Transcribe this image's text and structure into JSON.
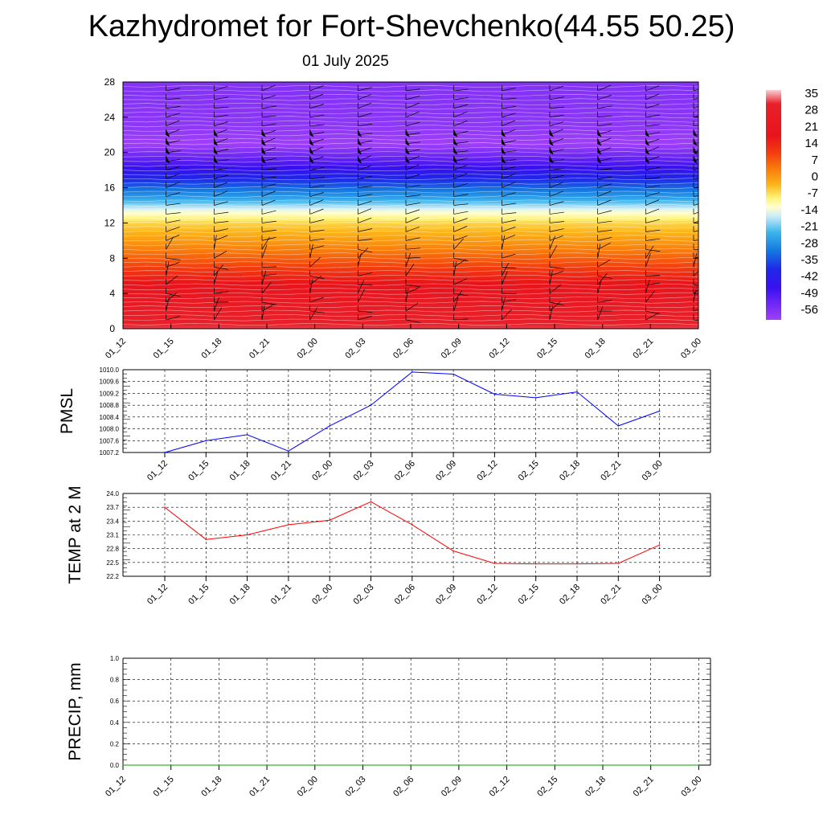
{
  "title": "Kazhydromet for Fort-Shevchenko(44.55 50.25)",
  "subtitle": "01 July 2025",
  "colors": {
    "pmsl_line": "#0000ff",
    "temp_line": "#ff0000",
    "precip_line": "#00a000",
    "grid": "#000000"
  },
  "chart_data": [
    {
      "type": "heatmap",
      "name": "temperature-wind-section",
      "x": [
        "01_12",
        "01_15",
        "01_18",
        "01_21",
        "02_00",
        "02_03",
        "02_06",
        "02_09",
        "02_12",
        "02_15",
        "02_18",
        "02_21",
        "03_00"
      ],
      "y_ticks": [
        0,
        4,
        8,
        12,
        16,
        20,
        24,
        28
      ],
      "ylim": [
        0,
        28
      ],
      "colorbar": {
        "labels": [
          "35",
          "28",
          "21",
          "14",
          "7",
          "0",
          "-7",
          "-14",
          "-21",
          "-28",
          "-35",
          "-42",
          "-49",
          "-56"
        ],
        "range": [
          -60,
          38
        ]
      },
      "profile": [
        {
          "level": 0,
          "value": 34
        },
        {
          "level": 2,
          "value": 30
        },
        {
          "level": 4,
          "value": 24
        },
        {
          "level": 6,
          "value": 17
        },
        {
          "level": 8,
          "value": 10
        },
        {
          "level": 10,
          "value": 3
        },
        {
          "level": 12,
          "value": -3
        },
        {
          "level": 13.5,
          "value": -12
        },
        {
          "level": 15,
          "value": -25
        },
        {
          "level": 17,
          "value": -38
        },
        {
          "level": 19,
          "value": -50
        },
        {
          "level": 21,
          "value": -60
        },
        {
          "level": 22.5,
          "value": -58
        },
        {
          "level": 24,
          "value": -57
        },
        {
          "level": 28,
          "value": -56
        }
      ]
    },
    {
      "type": "line",
      "name": "pmsl",
      "ylabel": "PMSL",
      "x": [
        "01_12",
        "01_15",
        "01_18",
        "01_21",
        "02_00",
        "02_03",
        "02_06",
        "02_09",
        "02_12",
        "02_15",
        "02_18",
        "02_21",
        "03_00"
      ],
      "values": [
        1007.2,
        1007.6,
        1007.8,
        1007.25,
        1008.1,
        1008.8,
        1009.92,
        1009.85,
        1009.17,
        1009.05,
        1009.25,
        1008.1,
        1008.6
      ],
      "y_ticks": [
        "1010.0",
        "1009.6",
        "1009.2",
        "1008.8",
        "1008.4",
        "1008.0",
        "1007.6",
        "1007.2"
      ],
      "ylim": [
        1007.2,
        1010.0
      ]
    },
    {
      "type": "line",
      "name": "temp-2m",
      "ylabel": "TEMP at 2 M",
      "x": [
        "01_12",
        "01_15",
        "01_18",
        "01_21",
        "02_00",
        "02_03",
        "02_06",
        "02_09",
        "02_12",
        "02_15",
        "02_18",
        "02_21",
        "03_00"
      ],
      "values": [
        23.7,
        23.0,
        23.1,
        23.32,
        23.42,
        23.82,
        23.32,
        22.75,
        22.48,
        22.47,
        22.47,
        22.48,
        22.88
      ],
      "y_ticks": [
        "24.0",
        "23.7",
        "23.4",
        "23.1",
        "22.8",
        "22.5",
        "22.2"
      ],
      "ylim": [
        22.2,
        24.0
      ]
    },
    {
      "type": "line",
      "name": "precip",
      "ylabel": "PRECIP, mm",
      "x": [
        "01_12",
        "01_15",
        "01_18",
        "01_21",
        "02_00",
        "02_03",
        "02_06",
        "02_09",
        "02_12",
        "02_15",
        "02_18",
        "02_21",
        "03_00"
      ],
      "values": [
        0,
        0,
        0,
        0,
        0,
        0,
        0,
        0,
        0,
        0,
        0,
        0,
        0
      ],
      "y_ticks": [
        "1.0",
        "0.8",
        "0.6",
        "0.4",
        "0.2",
        "0.0"
      ],
      "ylim": [
        0,
        1.0
      ]
    }
  ]
}
